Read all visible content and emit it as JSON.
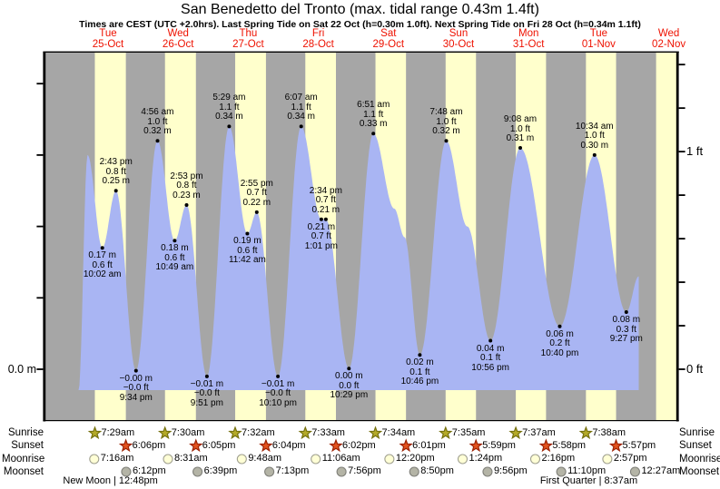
{
  "title": "San Benedetto del Tronto (max. tidal range 0.43m 1.4ft)",
  "subtitle": "Times are CEST (UTC +2.0hrs). Last Spring Tide on Sat 22 Oct (h=0.30m 1.0ft). Next Spring Tide on Fri 28 Oct (h=0.34m 1.1ft)",
  "chart_data": {
    "type": "area",
    "title": "San Benedetto del Tronto (max. tidal range 0.43m 1.4ft)",
    "x_axis": {
      "days": [
        {
          "dow": "Tue",
          "date": "25-Oct"
        },
        {
          "dow": "Wed",
          "date": "26-Oct"
        },
        {
          "dow": "Thu",
          "date": "27-Oct"
        },
        {
          "dow": "Fri",
          "date": "28-Oct"
        },
        {
          "dow": "Sat",
          "date": "29-Oct"
        },
        {
          "dow": "Sun",
          "date": "30-Oct"
        },
        {
          "dow": "Mon",
          "date": "31-Oct"
        },
        {
          "dow": "Tue",
          "date": "01-Nov"
        },
        {
          "dow": "Wed",
          "date": "02-Nov"
        }
      ]
    },
    "y_axis": {
      "left_label": "0.0 m",
      "left_ticks_m": [
        0,
        0.1,
        0.2,
        0.3,
        0.4
      ],
      "right_labels": {
        "one_ft": "1 ft",
        "zero_ft": "0 ft"
      },
      "right_ticks_ft": [
        0,
        0.2,
        0.4,
        0.6,
        0.8,
        1.0,
        1.2,
        1.4
      ],
      "ylim_m": [
        -0.03,
        0.44
      ]
    },
    "tide_events": [
      {
        "day": 0,
        "type": "high",
        "tod": 5.0,
        "height_m": 0.3,
        "labeled": false,
        "estimated": true
      },
      {
        "day": 0,
        "type": "low",
        "tod": 10.033,
        "height_m": 0.17,
        "m_label": "0.17 m",
        "ft_label": "0.6 ft",
        "time": "10:02 am",
        "labeled": true
      },
      {
        "day": 0,
        "type": "high",
        "tod": 14.717,
        "height_m": 0.25,
        "m_label": "0.25 m",
        "ft_label": "0.8 ft",
        "time": "2:43 pm",
        "labeled": true
      },
      {
        "day": 0,
        "type": "low",
        "tod": 21.567,
        "height_m": -0.002,
        "m_label": "−0.00 m",
        "ft_label": "−0.0 ft",
        "time": "9:34 pm",
        "labeled": true
      },
      {
        "day": 1,
        "type": "high",
        "tod": 4.933,
        "height_m": 0.32,
        "m_label": "0.32 m",
        "ft_label": "1.0 ft",
        "time": "4:56 am",
        "labeled": true
      },
      {
        "day": 1,
        "type": "low",
        "tod": 10.817,
        "height_m": 0.18,
        "m_label": "0.18 m",
        "ft_label": "0.6 ft",
        "time": "10:49 am",
        "labeled": true
      },
      {
        "day": 1,
        "type": "high",
        "tod": 14.883,
        "height_m": 0.23,
        "m_label": "0.23 m",
        "ft_label": "0.8 ft",
        "time": "2:53 pm",
        "labeled": true
      },
      {
        "day": 1,
        "type": "low",
        "tod": 21.85,
        "height_m": -0.01,
        "m_label": "−0.01 m",
        "ft_label": "−0.0 ft",
        "time": "9:51 pm",
        "labeled": true
      },
      {
        "day": 2,
        "type": "high",
        "tod": 5.483,
        "height_m": 0.34,
        "m_label": "0.34 m",
        "ft_label": "1.1 ft",
        "time": "5:29 am",
        "labeled": true
      },
      {
        "day": 2,
        "type": "low",
        "tod": 11.7,
        "height_m": 0.19,
        "m_label": "0.19 m",
        "ft_label": "0.6 ft",
        "time": "11:42 am",
        "labeled": true
      },
      {
        "day": 2,
        "type": "high",
        "tod": 14.917,
        "height_m": 0.22,
        "m_label": "0.22 m",
        "ft_label": "0.7 ft",
        "time": "2:55 pm",
        "labeled": true
      },
      {
        "day": 2,
        "type": "low",
        "tod": 22.167,
        "height_m": -0.01,
        "m_label": "−0.01 m",
        "ft_label": "−0.0 ft",
        "time": "10:10 pm",
        "labeled": true
      },
      {
        "day": 3,
        "type": "high",
        "tod": 6.117,
        "height_m": 0.34,
        "m_label": "0.34 m",
        "ft_label": "1.1 ft",
        "time": "6:07 am",
        "labeled": true
      },
      {
        "day": 3,
        "type": "low",
        "tod": 13.017,
        "height_m": 0.21,
        "m_label": "0.21 m",
        "ft_label": "0.7 ft",
        "time": "1:01 pm",
        "labeled": true
      },
      {
        "day": 3,
        "type": "high",
        "tod": 14.567,
        "height_m": 0.21,
        "m_label": "0.21 m",
        "ft_label": "0.7 ft",
        "time": "2:34 pm",
        "labeled": true
      },
      {
        "day": 3,
        "type": "low",
        "tod": 22.483,
        "height_m": 0.001,
        "m_label": "0.00 m",
        "ft_label": "0.0 ft",
        "time": "10:29 pm",
        "labeled": true
      },
      {
        "day": 4,
        "type": "high",
        "tod": 6.85,
        "height_m": 0.33,
        "m_label": "0.33 m",
        "ft_label": "1.1 ft",
        "time": "6:51 am",
        "labeled": true
      },
      {
        "day": 4,
        "type": "low",
        "tod": 22.767,
        "height_m": 0.02,
        "m_label": "0.02 m",
        "ft_label": "0.1 ft",
        "time": "10:46 pm",
        "labeled": true
      },
      {
        "day": 5,
        "type": "high",
        "tod": 7.8,
        "height_m": 0.32,
        "m_label": "0.32 m",
        "ft_label": "1.0 ft",
        "time": "7:48 am",
        "labeled": true
      },
      {
        "day": 5,
        "type": "low",
        "tod": 22.933,
        "height_m": 0.04,
        "m_label": "0.04 m",
        "ft_label": "0.1 ft",
        "time": "10:56 pm",
        "labeled": true
      },
      {
        "day": 6,
        "type": "high",
        "tod": 9.133,
        "height_m": 0.31,
        "m_label": "0.31 m",
        "ft_label": "1.0 ft",
        "time": "9:08 am",
        "labeled": true
      },
      {
        "day": 6,
        "type": "low",
        "tod": 22.667,
        "height_m": 0.06,
        "m_label": "0.06 m",
        "ft_label": "0.2 ft",
        "time": "10:40 pm",
        "labeled": true
      },
      {
        "day": 7,
        "type": "high",
        "tod": 10.567,
        "height_m": 0.3,
        "m_label": "0.30 m",
        "ft_label": "1.0 ft",
        "time": "10:34 am",
        "labeled": true
      },
      {
        "day": 7,
        "type": "low",
        "tod": 21.45,
        "height_m": 0.08,
        "m_label": "0.08 m",
        "ft_label": "0.3 ft",
        "time": "9:27 pm",
        "labeled": true
      }
    ],
    "curve_hints": [
      {
        "day": 0,
        "tod": 1.9,
        "height_m": -0.03
      },
      {
        "day": 4,
        "tod": 14.0,
        "height_m": 0.225
      },
      {
        "day": 4,
        "tod": 17.5,
        "height_m": 0.185
      },
      {
        "day": 5,
        "tod": 15.0,
        "height_m": 0.2
      },
      {
        "day": 8,
        "tod": 1.7,
        "height_m": 0.13
      }
    ],
    "edge_day_sun": {
      "sunrise_tod": 7.65,
      "sunset_tod": 17.93
    }
  },
  "sun_moon": {
    "row_labels": {
      "sunrise": "Sunrise",
      "sunset": "Sunset",
      "moonrise": "Moonrise",
      "moonset": "Moonset"
    },
    "sunrise": [
      {
        "day": 0,
        "tod": 7.483,
        "time": "7:29am"
      },
      {
        "day": 1,
        "tod": 7.5,
        "time": "7:30am"
      },
      {
        "day": 2,
        "tod": 7.533,
        "time": "7:32am"
      },
      {
        "day": 3,
        "tod": 7.55,
        "time": "7:33am"
      },
      {
        "day": 4,
        "tod": 7.567,
        "time": "7:34am"
      },
      {
        "day": 5,
        "tod": 7.583,
        "time": "7:35am"
      },
      {
        "day": 6,
        "tod": 7.617,
        "time": "7:37am"
      },
      {
        "day": 7,
        "tod": 7.633,
        "time": "7:38am"
      }
    ],
    "sunset": [
      {
        "day": 0,
        "tod": 18.1,
        "time": "6:06pm"
      },
      {
        "day": 1,
        "tod": 18.083,
        "time": "6:05pm"
      },
      {
        "day": 2,
        "tod": 18.067,
        "time": "6:04pm"
      },
      {
        "day": 3,
        "tod": 18.033,
        "time": "6:02pm"
      },
      {
        "day": 4,
        "tod": 18.017,
        "time": "6:01pm"
      },
      {
        "day": 5,
        "tod": 17.983,
        "time": "5:59pm"
      },
      {
        "day": 6,
        "tod": 17.967,
        "time": "5:58pm"
      },
      {
        "day": 7,
        "tod": 17.95,
        "time": "5:57pm"
      }
    ],
    "moonrise": [
      {
        "day": 0,
        "tod": 7.267,
        "time": "7:16am"
      },
      {
        "day": 1,
        "tod": 8.517,
        "time": "8:31am"
      },
      {
        "day": 2,
        "tod": 9.8,
        "time": "9:48am"
      },
      {
        "day": 3,
        "tod": 11.1,
        "time": "11:06am"
      },
      {
        "day": 4,
        "tod": 12.333,
        "time": "12:20pm"
      },
      {
        "day": 5,
        "tod": 13.4,
        "time": "1:24pm"
      },
      {
        "day": 6,
        "tod": 14.267,
        "time": "2:16pm"
      },
      {
        "day": 7,
        "tod": 14.95,
        "time": "2:57pm"
      }
    ],
    "moonset": [
      {
        "day": 0,
        "tod": 18.2,
        "time": "6:12pm"
      },
      {
        "day": 1,
        "tod": 18.65,
        "time": "6:39pm"
      },
      {
        "day": 2,
        "tod": 19.217,
        "time": "7:13pm"
      },
      {
        "day": 3,
        "tod": 19.933,
        "time": "7:56pm"
      },
      {
        "day": 4,
        "tod": 20.833,
        "time": "8:50pm"
      },
      {
        "day": 5,
        "tod": 21.933,
        "time": "9:56pm"
      },
      {
        "day": 6,
        "tod": 23.167,
        "time": "11:10pm"
      },
      {
        "day": 8,
        "tod": 0.45,
        "time": "12:27am"
      }
    ],
    "phases": [
      {
        "label": "New Moon | 12:48pm",
        "day": 0,
        "tod": 12.8
      },
      {
        "label": "First Quarter | 8:37am",
        "day": 7,
        "tod": 8.62
      }
    ]
  },
  "colors": {
    "night_band": "#a6a6a6",
    "day_band": "#ffffcc",
    "tide_fill": "#a9b5f3",
    "axis": "#000000",
    "day_label": "#ee1100",
    "sunrise_star": "#b4aa28",
    "sunrise_star_outline": "#75700d",
    "sunset_star": "#e2531f",
    "sunset_star_outline": "#9c2000",
    "moonrise_circle": "#ffffd6",
    "moonrise_circle_outline": "#a0a090",
    "moonset_circle": "#b4b4a6",
    "moonset_circle_outline": "#80807a"
  }
}
